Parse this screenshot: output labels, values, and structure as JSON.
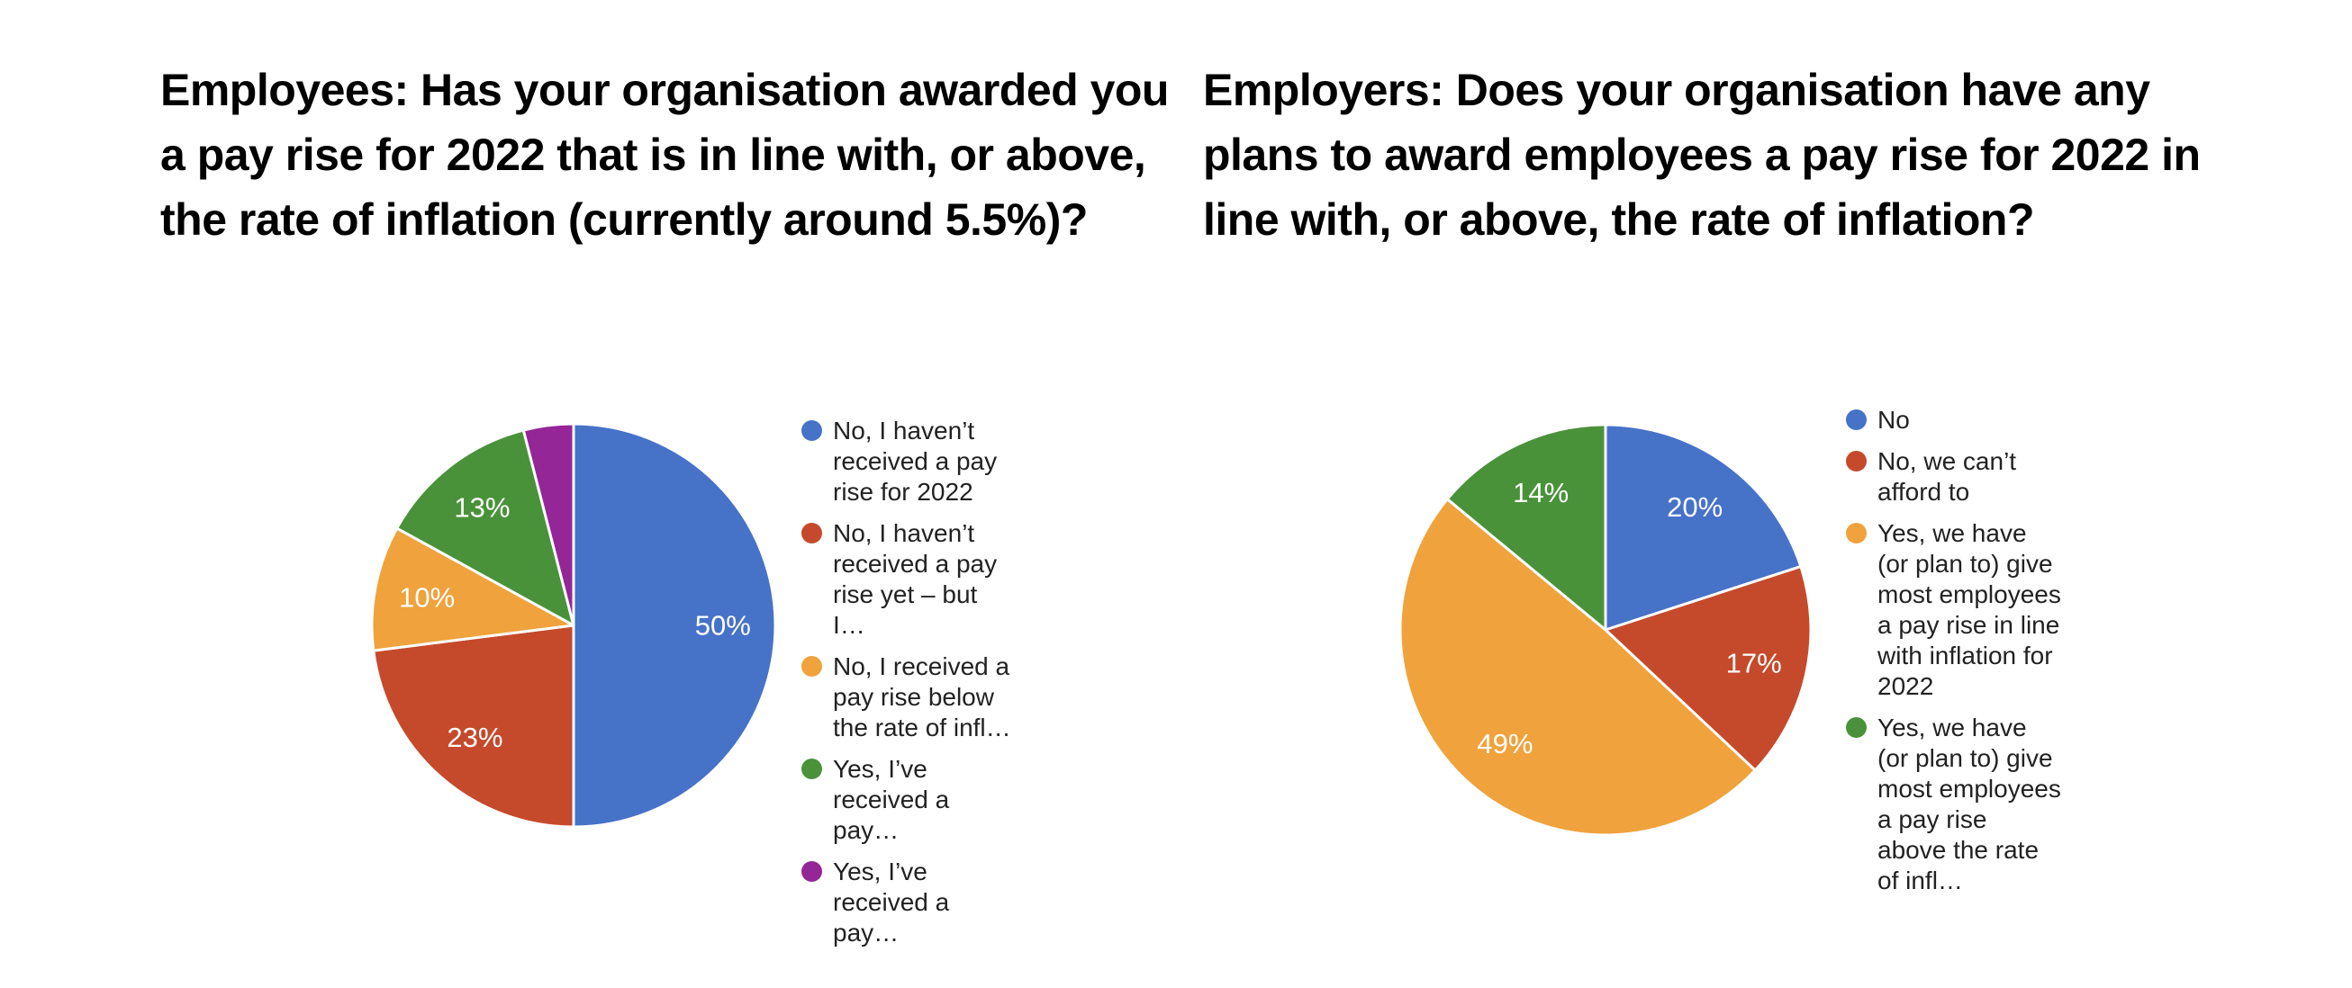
{
  "page": {
    "background": "#ffffff"
  },
  "chart_data": [
    {
      "type": "pie",
      "title": "Employees: Has your organisation awarded you a pay rise for 2022 that is in line with, or above, the rate of inflation (currently around 5.5%)?",
      "labels": [
        "No, I haven’t received a pay rise for 2022",
        "No, I haven’t received a pay rise yet – but I…",
        "No, I received a pay rise below the rate of infl…",
        "Yes, I’ve received a pay…",
        "Yes, I’ve received a pay…"
      ],
      "values": [
        50,
        23,
        10,
        13,
        4
      ],
      "slice_labels": [
        "50%",
        "23%",
        "10%",
        "13%",
        ""
      ],
      "colors": [
        "#4672C8",
        "#C54A2B",
        "#F0A23C",
        "#4A923A",
        "#942698"
      ],
      "legend_position": "right",
      "start_angle_deg": 0,
      "direction": "clockwise",
      "slice_label_color": "#ffffff",
      "radius": 224
    },
    {
      "type": "pie",
      "title": "Employers: Does your organisation have any plans to award employees a pay rise for 2022 in line with, or above, the rate of inflation?",
      "labels": [
        "No",
        "No, we can’t afford to",
        "Yes, we have (or plan to) give most employees a pay rise in line with inflation for 2022",
        "Yes, we have (or plan to) give most employees a pay rise above the rate of infl…"
      ],
      "values": [
        20,
        17,
        49,
        14
      ],
      "slice_labels": [
        "20%",
        "17%",
        "49%",
        "14%"
      ],
      "colors": [
        "#4672C8",
        "#C54A2B",
        "#F0A23C",
        "#4A923A"
      ],
      "legend_position": "right",
      "start_angle_deg": 0,
      "direction": "clockwise",
      "slice_label_color": "#ffffff",
      "radius": 228
    }
  ]
}
